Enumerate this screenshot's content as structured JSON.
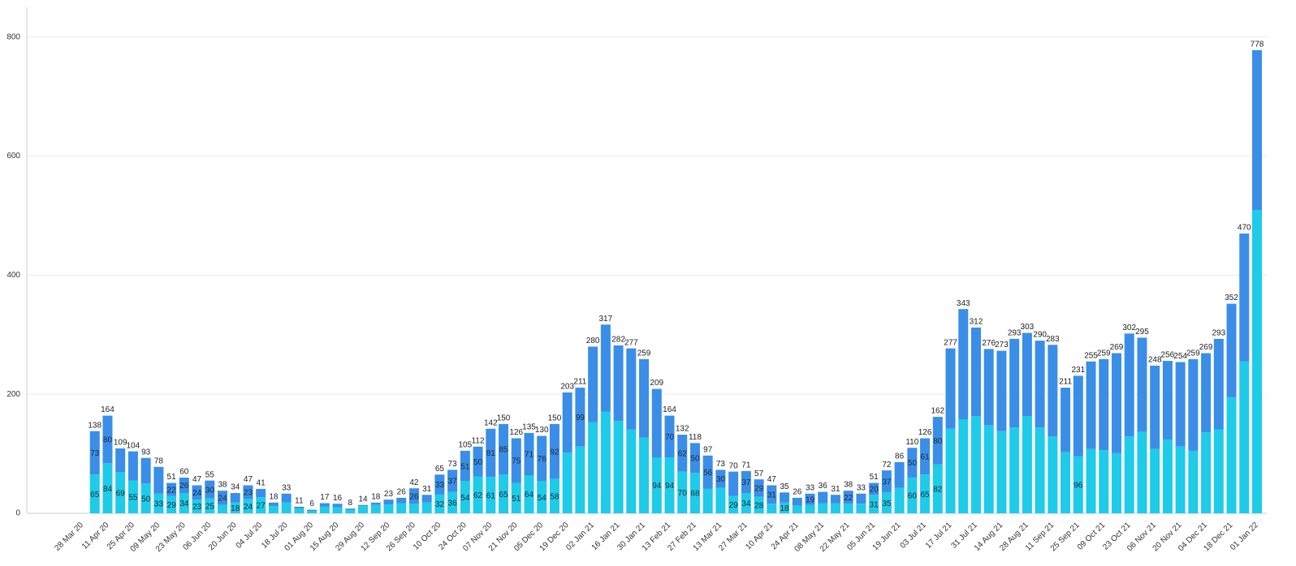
{
  "chart_data": {
    "type": "stacked_bar",
    "categories": [
      "28 Mar 20",
      null,
      "11 Apr 20",
      null,
      "25 Apr 20",
      null,
      "09 May 20",
      null,
      "23 May 20",
      null,
      "06 Jun 20",
      null,
      "20 Jun 20",
      null,
      "04 Jul 20",
      null,
      "18 Jul 20",
      null,
      "01 Aug 20",
      null,
      "15 Aug 20",
      null,
      "29 Aug 20",
      null,
      "12 Sep 20",
      null,
      "26 Sep 20",
      null,
      "10 Oct 20",
      null,
      "24 Oct 20",
      null,
      "07 Nov 20",
      null,
      "21 Nov 20",
      null,
      "05 Dec 20",
      null,
      "19 Dec 20",
      null,
      "02 Jan 21",
      null,
      "16 Jan 21",
      null,
      "30 Jan 21",
      null,
      "13 Feb 21",
      null,
      "27 Feb 21",
      null,
      "13 Mar 21",
      null,
      "27 Mar 21",
      null,
      "10 Apr 21",
      null,
      "24 Apr 21",
      null,
      "08 May 21",
      null,
      "22 May 21",
      null,
      "05 Jun 21",
      null,
      "19 Jun 21",
      null,
      "03 Jul 21",
      null,
      "17 Jul 21",
      null,
      "31 Jul 21",
      null,
      "14 Aug 21",
      null,
      "28 Aug 21",
      null,
      "11 Sep 21",
      null,
      "25 Sep 21",
      null,
      "09 Oct 21",
      null,
      "23 Oct 21",
      null,
      "06 Nov 21",
      null,
      "20 Nov 21",
      null,
      "04 Dec 21",
      null,
      "18 Dec 21",
      null,
      "01 Jan 22"
    ],
    "series": [
      {
        "color": "#1ecbe8",
        "values": [
          null,
          65,
          84,
          69,
          55,
          50,
          33,
          29,
          34,
          23,
          25,
          14,
          18,
          24,
          27,
          12,
          18,
          8,
          4,
          11,
          10,
          6,
          12,
          14,
          15,
          17,
          16,
          18,
          32,
          36,
          54,
          62,
          61,
          65,
          51,
          64,
          54,
          58,
          102,
          112,
          153,
          171,
          155,
          141,
          127,
          94,
          94,
          70,
          68,
          41,
          43,
          29,
          34,
          28,
          16,
          18,
          13,
          14,
          17,
          17,
          16,
          16,
          31,
          35,
          43,
          60,
          65,
          82,
          142,
          158,
          163,
          148,
          138,
          144,
          163,
          144,
          129,
          103,
          96,
          108,
          106,
          101,
          129,
          137,
          108,
          124,
          112,
          105,
          136,
          141,
          195,
          255,
          509
        ],
        "value_labels": [
          null,
          "65",
          "84",
          "69",
          "55",
          "50",
          "33",
          "29",
          "34",
          "23",
          "25",
          null,
          "18",
          "24",
          "27",
          null,
          null,
          null,
          null,
          null,
          null,
          null,
          null,
          null,
          null,
          null,
          null,
          null,
          "32",
          "36",
          "54",
          "62",
          "61",
          "65",
          "51",
          "64",
          "54",
          "58",
          null,
          null,
          null,
          null,
          null,
          null,
          null,
          "94",
          "94",
          "70",
          "68",
          null,
          null,
          "29",
          "34",
          "28",
          null,
          "18",
          null,
          null,
          null,
          null,
          null,
          null,
          "31",
          "35",
          null,
          "60",
          "65",
          "82",
          null,
          null,
          null,
          null,
          null,
          null,
          null,
          null,
          null,
          null,
          "96",
          null,
          null,
          null,
          null,
          null,
          null,
          null,
          null,
          null,
          null,
          null,
          null,
          null,
          null
        ]
      },
      {
        "color": "#3a8ee8",
        "values": [
          null,
          73,
          80,
          40,
          49,
          43,
          45,
          22,
          26,
          24,
          30,
          24,
          16,
          23,
          14,
          6,
          15,
          3,
          2,
          6,
          6,
          2,
          2,
          4,
          8,
          9,
          26,
          13,
          33,
          37,
          51,
          50,
          81,
          85,
          75,
          71,
          76,
          92,
          101,
          99,
          127,
          146,
          127,
          136,
          132,
          115,
          70,
          62,
          50,
          56,
          30,
          41,
          37,
          29,
          31,
          17,
          13,
          19,
          19,
          14,
          22,
          17,
          20,
          37,
          43,
          50,
          61,
          80,
          135,
          185,
          149,
          128,
          135,
          149,
          140,
          146,
          154,
          108,
          135,
          147,
          153,
          168,
          173,
          158,
          140,
          132,
          142,
          154,
          133,
          152,
          157,
          215,
          269
        ],
        "value_labels": [
          null,
          "73",
          "80",
          null,
          null,
          null,
          null,
          "22",
          "26",
          "24",
          "30",
          "24",
          null,
          "23",
          null,
          null,
          null,
          null,
          null,
          null,
          null,
          null,
          null,
          null,
          null,
          null,
          "26",
          null,
          "33",
          "37",
          "51",
          "50",
          "81",
          "85",
          "75",
          "71",
          "76",
          "92",
          null,
          "99",
          null,
          null,
          null,
          null,
          null,
          null,
          "70",
          "62",
          "50",
          "56",
          "30",
          null,
          "37",
          "29",
          "31",
          null,
          null,
          "19",
          null,
          null,
          "22",
          null,
          "20",
          "37",
          null,
          "50",
          "61",
          "80",
          null,
          null,
          null,
          null,
          null,
          null,
          null,
          null,
          null,
          null,
          null,
          null,
          null,
          null,
          null,
          null,
          null,
          null,
          null,
          null,
          null,
          null,
          null,
          null,
          null
        ]
      }
    ],
    "totals": [
      null,
      138,
      164,
      109,
      104,
      93,
      78,
      51,
      60,
      47,
      55,
      38,
      34,
      47,
      41,
      18,
      33,
      11,
      6,
      17,
      16,
      8,
      14,
      18,
      23,
      26,
      42,
      31,
      65,
      73,
      105,
      112,
      142,
      150,
      126,
      135,
      130,
      150,
      203,
      211,
      280,
      317,
      282,
      277,
      259,
      209,
      164,
      132,
      118,
      97,
      73,
      70,
      71,
      57,
      47,
      35,
      26,
      33,
      36,
      31,
      38,
      33,
      51,
      72,
      86,
      110,
      126,
      162,
      277,
      343,
      312,
      276,
      273,
      293,
      303,
      290,
      283,
      211,
      231,
      255,
      259,
      269,
      302,
      295,
      248,
      256,
      254,
      259,
      269,
      293,
      352,
      470,
      778
    ],
    "ylim": [
      0,
      850
    ],
    "yticks": [
      0,
      200,
      400,
      600,
      800
    ],
    "grid": true
  }
}
